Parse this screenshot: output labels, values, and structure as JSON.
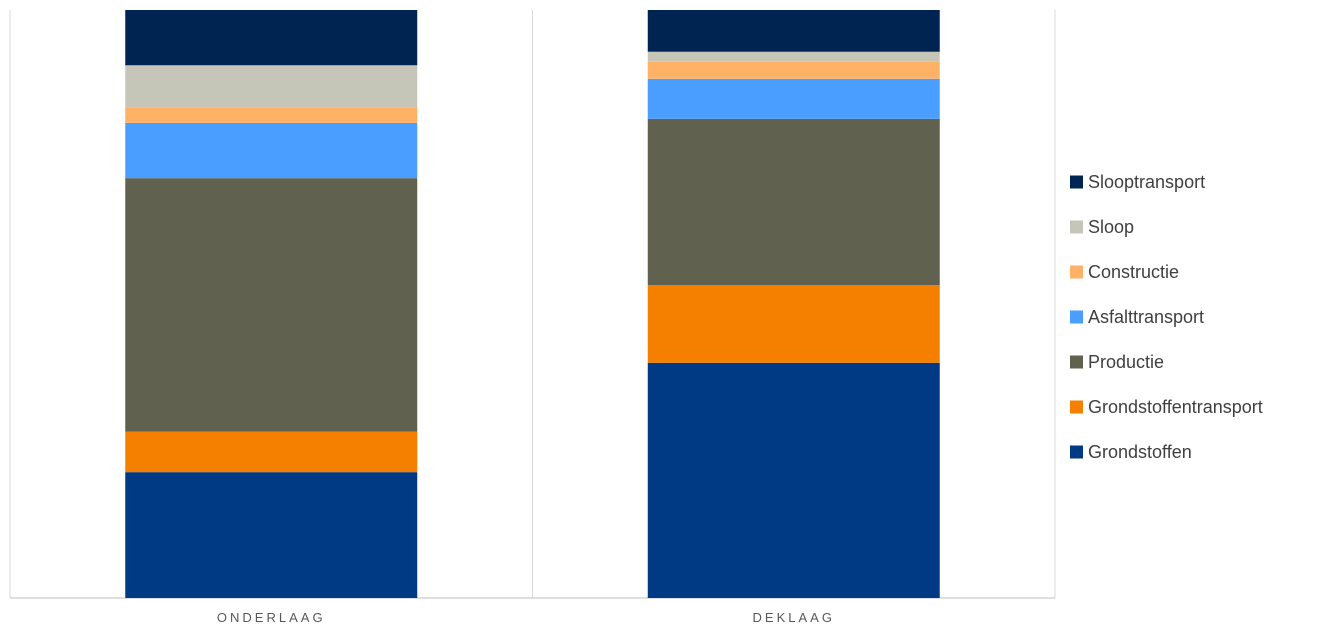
{
  "chart_data": {
    "type": "bar",
    "stacked": true,
    "percent_stacked": true,
    "categories": [
      "ONDERLAAG",
      "DEKLAAG"
    ],
    "series": [
      {
        "name": "Grondstoffen",
        "color": "#003A85",
        "values": [
          21.4,
          40.0
        ]
      },
      {
        "name": "Grondstoffentransport",
        "color": "#F58000",
        "values": [
          6.9,
          13.2
        ]
      },
      {
        "name": "Productie",
        "color": "#616150",
        "values": [
          43.1,
          28.3
        ]
      },
      {
        "name": "Asfalttransport",
        "color": "#4A9EFF",
        "values": [
          9.4,
          6.8
        ]
      },
      {
        "name": "Constructie",
        "color": "#FFB266",
        "values": [
          2.6,
          2.9
        ]
      },
      {
        "name": "Sloop",
        "color": "#C5C6B8",
        "values": [
          7.2,
          1.7
        ]
      },
      {
        "name": "Slooptransport",
        "color": "#002452",
        "values": [
          9.4,
          7.1
        ]
      }
    ],
    "ylim": [
      0,
      100
    ],
    "legend_position": "right",
    "legend_order": "reverse",
    "grid": false,
    "colors": {
      "divider": "#D9D9D9",
      "axis": "#BFBFBF"
    }
  }
}
